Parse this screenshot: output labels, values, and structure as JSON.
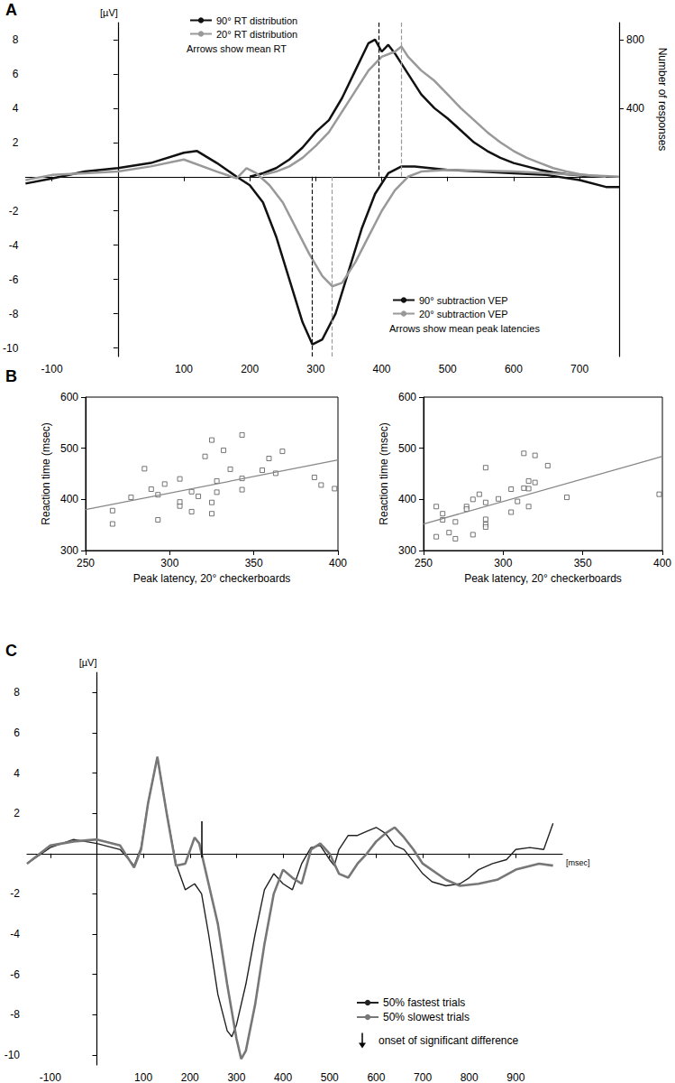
{
  "chart_data": [
    {
      "type": "line",
      "panel": "A",
      "y_label": "[µV]",
      "y2_label": "Number of responses",
      "xlim": [
        -140,
        760
      ],
      "xticks": [
        -100,
        100,
        200,
        300,
        400,
        500,
        600,
        700
      ],
      "ylim": [
        -10.5,
        9
      ],
      "yticks": [
        -10,
        -8,
        -6,
        -4,
        -2,
        2,
        4,
        6,
        8
      ],
      "y2lim": [
        -1050,
        900
      ],
      "y2ticks": [
        400,
        800
      ],
      "annotations": [
        "Arrows show mean RT",
        "Arrows show mean peak latencies"
      ],
      "series": [
        {
          "name": "90° RT distribution",
          "color": "#111111",
          "axis": "y2",
          "line_style": "solid",
          "mean": 395,
          "x": [
            200,
            220,
            240,
            260,
            280,
            300,
            320,
            340,
            360,
            380,
            390,
            400,
            410,
            420,
            440,
            460,
            480,
            500,
            520,
            540,
            560,
            580,
            600,
            620,
            640,
            660,
            680,
            700,
            720
          ],
          "values": [
            0,
            20,
            50,
            100,
            170,
            260,
            330,
            460,
            620,
            780,
            800,
            730,
            770,
            720,
            600,
            480,
            400,
            340,
            270,
            200,
            150,
            110,
            80,
            60,
            40,
            25,
            15,
            8,
            0
          ]
        },
        {
          "name": "20° RT distribution",
          "color": "#999999",
          "axis": "y2",
          "line_style": "solid",
          "mean": 430,
          "x": [
            220,
            240,
            260,
            280,
            300,
            320,
            340,
            360,
            380,
            400,
            420,
            430,
            440,
            460,
            480,
            500,
            520,
            540,
            560,
            580,
            600,
            620,
            640,
            660,
            680,
            700,
            720,
            740
          ],
          "values": [
            10,
            30,
            60,
            110,
            180,
            260,
            380,
            500,
            620,
            700,
            730,
            760,
            700,
            620,
            560,
            480,
            400,
            330,
            260,
            200,
            150,
            110,
            80,
            50,
            30,
            15,
            5,
            0
          ]
        },
        {
          "name": "90° subtraction VEP",
          "color": "#111111",
          "axis": "y",
          "line_style": "solid",
          "mean": 295,
          "x": [
            -140,
            -100,
            -50,
            0,
            50,
            100,
            120,
            150,
            180,
            200,
            220,
            240,
            260,
            280,
            295,
            310,
            330,
            350,
            370,
            390,
            410,
            430,
            450,
            500,
            550,
            600,
            650,
            700,
            740,
            760
          ],
          "values": [
            -0.4,
            -0.1,
            0.3,
            0.5,
            0.8,
            1.4,
            1.5,
            0.8,
            0,
            -0.5,
            -1.5,
            -3.5,
            -6,
            -8.5,
            -9.8,
            -9.5,
            -8,
            -5.5,
            -3,
            -1,
            0.2,
            0.6,
            0.6,
            0.4,
            0.3,
            0.2,
            0.1,
            -0.2,
            -0.6,
            -0.6
          ]
        },
        {
          "name": "20° subtraction VEP",
          "color": "#999999",
          "axis": "y",
          "line_style": "solid",
          "mean": 325,
          "x": [
            -140,
            -100,
            -50,
            0,
            50,
            100,
            150,
            180,
            195,
            210,
            230,
            250,
            270,
            290,
            310,
            325,
            340,
            360,
            380,
            400,
            420,
            440,
            460,
            500,
            600,
            700,
            760
          ],
          "values": [
            -0.2,
            0.1,
            0.2,
            0.3,
            0.6,
            1.0,
            0.3,
            -0.1,
            0.5,
            0.2,
            -0.5,
            -1.5,
            -3,
            -4.5,
            -5.8,
            -6.4,
            -6.2,
            -5,
            -3.5,
            -2,
            -0.8,
            0,
            0.3,
            0.4,
            0.3,
            0.1,
            0
          ]
        }
      ]
    },
    {
      "type": "scatter",
      "panel": "B",
      "x_label": "Peak latency, 20° checkerboards",
      "y_label": "Reaction time (msec)",
      "xlim": [
        250,
        400
      ],
      "xticks": [
        250,
        300,
        350,
        400
      ],
      "ylim": [
        300,
        600
      ],
      "yticks": [
        300,
        400,
        500,
        600
      ],
      "color": "#555555",
      "marker": "square",
      "x": [
        266,
        266,
        277,
        285,
        289,
        293,
        293,
        297,
        306,
        306,
        306,
        313,
        313,
        317,
        321,
        325,
        325,
        325,
        328,
        328,
        332,
        336,
        343,
        343,
        343,
        355,
        359,
        363,
        367,
        386,
        390,
        398
      ],
      "values": [
        352,
        378,
        404,
        460,
        420,
        360,
        409,
        430,
        440,
        387,
        395,
        376,
        415,
        406,
        484,
        372,
        394,
        516,
        414,
        436,
        496,
        459,
        526,
        419,
        441,
        457,
        480,
        451,
        494,
        443,
        428,
        421
      ],
      "fit": {
        "x": [
          250,
          400
        ],
        "values": [
          380,
          477
        ],
        "color": "#888888"
      }
    },
    {
      "type": "scatter",
      "x_label": "Peak latency, 20° checkerboards",
      "y_label": "Reaction time (msec)",
      "xlim": [
        250,
        400
      ],
      "xticks": [
        250,
        300,
        350,
        400
      ],
      "ylim": [
        300,
        600
      ],
      "yticks": [
        300,
        400,
        500,
        600
      ],
      "color": "#555555",
      "marker": "square",
      "x": [
        258,
        258,
        262,
        262,
        266,
        270,
        270,
        277,
        277,
        281,
        281,
        285,
        289,
        289,
        289,
        289,
        289,
        297,
        305,
        305,
        309,
        313,
        313,
        316,
        316,
        316,
        320,
        320,
        328,
        340,
        398
      ],
      "values": [
        327,
        386,
        372,
        360,
        335,
        356,
        323,
        386,
        381,
        331,
        400,
        410,
        351,
        361,
        346,
        462,
        394,
        401,
        420,
        375,
        396,
        490,
        422,
        436,
        421,
        386,
        433,
        486,
        466,
        404,
        410
      ],
      "fit": {
        "x": [
          250,
          400
        ],
        "values": [
          352,
          484
        ],
        "color": "#888888"
      }
    },
    {
      "type": "line",
      "panel": "C",
      "x_label": "[msec]",
      "y_label": "[µV]",
      "xlim": [
        -150,
        1000
      ],
      "xticks": [
        -100,
        100,
        200,
        300,
        400,
        500,
        600,
        700,
        800,
        900
      ],
      "ylim": [
        -10.5,
        9
      ],
      "yticks": [
        -10,
        -8,
        -6,
        -4,
        -2,
        2,
        4,
        6,
        8
      ],
      "onset": 225,
      "annotations": [
        "onset of significant difference"
      ],
      "series": [
        {
          "name": "50% fastest trials",
          "color": "#222222",
          "line_style": "solid",
          "x": [
            -150,
            -100,
            -50,
            0,
            50,
            80,
            95,
            110,
            130,
            150,
            170,
            190,
            210,
            225,
            240,
            260,
            280,
            290,
            300,
            320,
            340,
            360,
            380,
            400,
            420,
            440,
            460,
            480,
            500,
            510,
            520,
            540,
            560,
            580,
            600,
            620,
            640,
            660,
            680,
            700,
            720,
            750,
            780,
            800,
            820,
            850,
            880,
            900,
            930,
            960,
            980
          ],
          "values": [
            -0.5,
            0.3,
            0.7,
            0.5,
            0.2,
            -0.6,
            0.3,
            2.5,
            4.8,
            2,
            -0.5,
            -1.8,
            -1.5,
            -2.0,
            -4,
            -7,
            -8.8,
            -9.1,
            -8.5,
            -6.5,
            -4,
            -1.8,
            -1,
            -1.5,
            -1.8,
            -0.5,
            0.3,
            0.4,
            -0.3,
            -0.6,
            0.2,
            0.9,
            0.9,
            1.1,
            1.3,
            1.0,
            0.4,
            0.2,
            -0.4,
            -1,
            -1.4,
            -1.6,
            -1.5,
            -1.2,
            -0.8,
            -0.5,
            -0.3,
            0.2,
            0.3,
            0.2,
            1.5
          ]
        },
        {
          "name": "50% slowest trials",
          "color": "#777777",
          "line_style": "solid",
          "x": [
            -150,
            -100,
            -50,
            0,
            50,
            80,
            95,
            110,
            130,
            150,
            170,
            190,
            210,
            220,
            240,
            260,
            280,
            300,
            310,
            320,
            340,
            360,
            380,
            400,
            420,
            440,
            460,
            480,
            500,
            520,
            540,
            560,
            580,
            600,
            620,
            640,
            660,
            680,
            700,
            750,
            780,
            820,
            860,
            900,
            950,
            980
          ],
          "values": [
            -0.5,
            0.4,
            0.6,
            0.7,
            0.4,
            -0.7,
            0.2,
            2.5,
            4.8,
            2,
            -0.6,
            -0.5,
            0.8,
            0.5,
            -1.5,
            -3.5,
            -6.5,
            -9.2,
            -10.2,
            -9.8,
            -7.5,
            -4.5,
            -2,
            -0.8,
            -1.2,
            -1.5,
            0.2,
            0.5,
            0,
            -1,
            -1.2,
            -0.5,
            0,
            0.6,
            1.0,
            1.3,
            0.8,
            0.2,
            -0.5,
            -1.3,
            -1.6,
            -1.5,
            -1.3,
            -0.8,
            -0.5,
            -0.6
          ]
        }
      ]
    }
  ]
}
